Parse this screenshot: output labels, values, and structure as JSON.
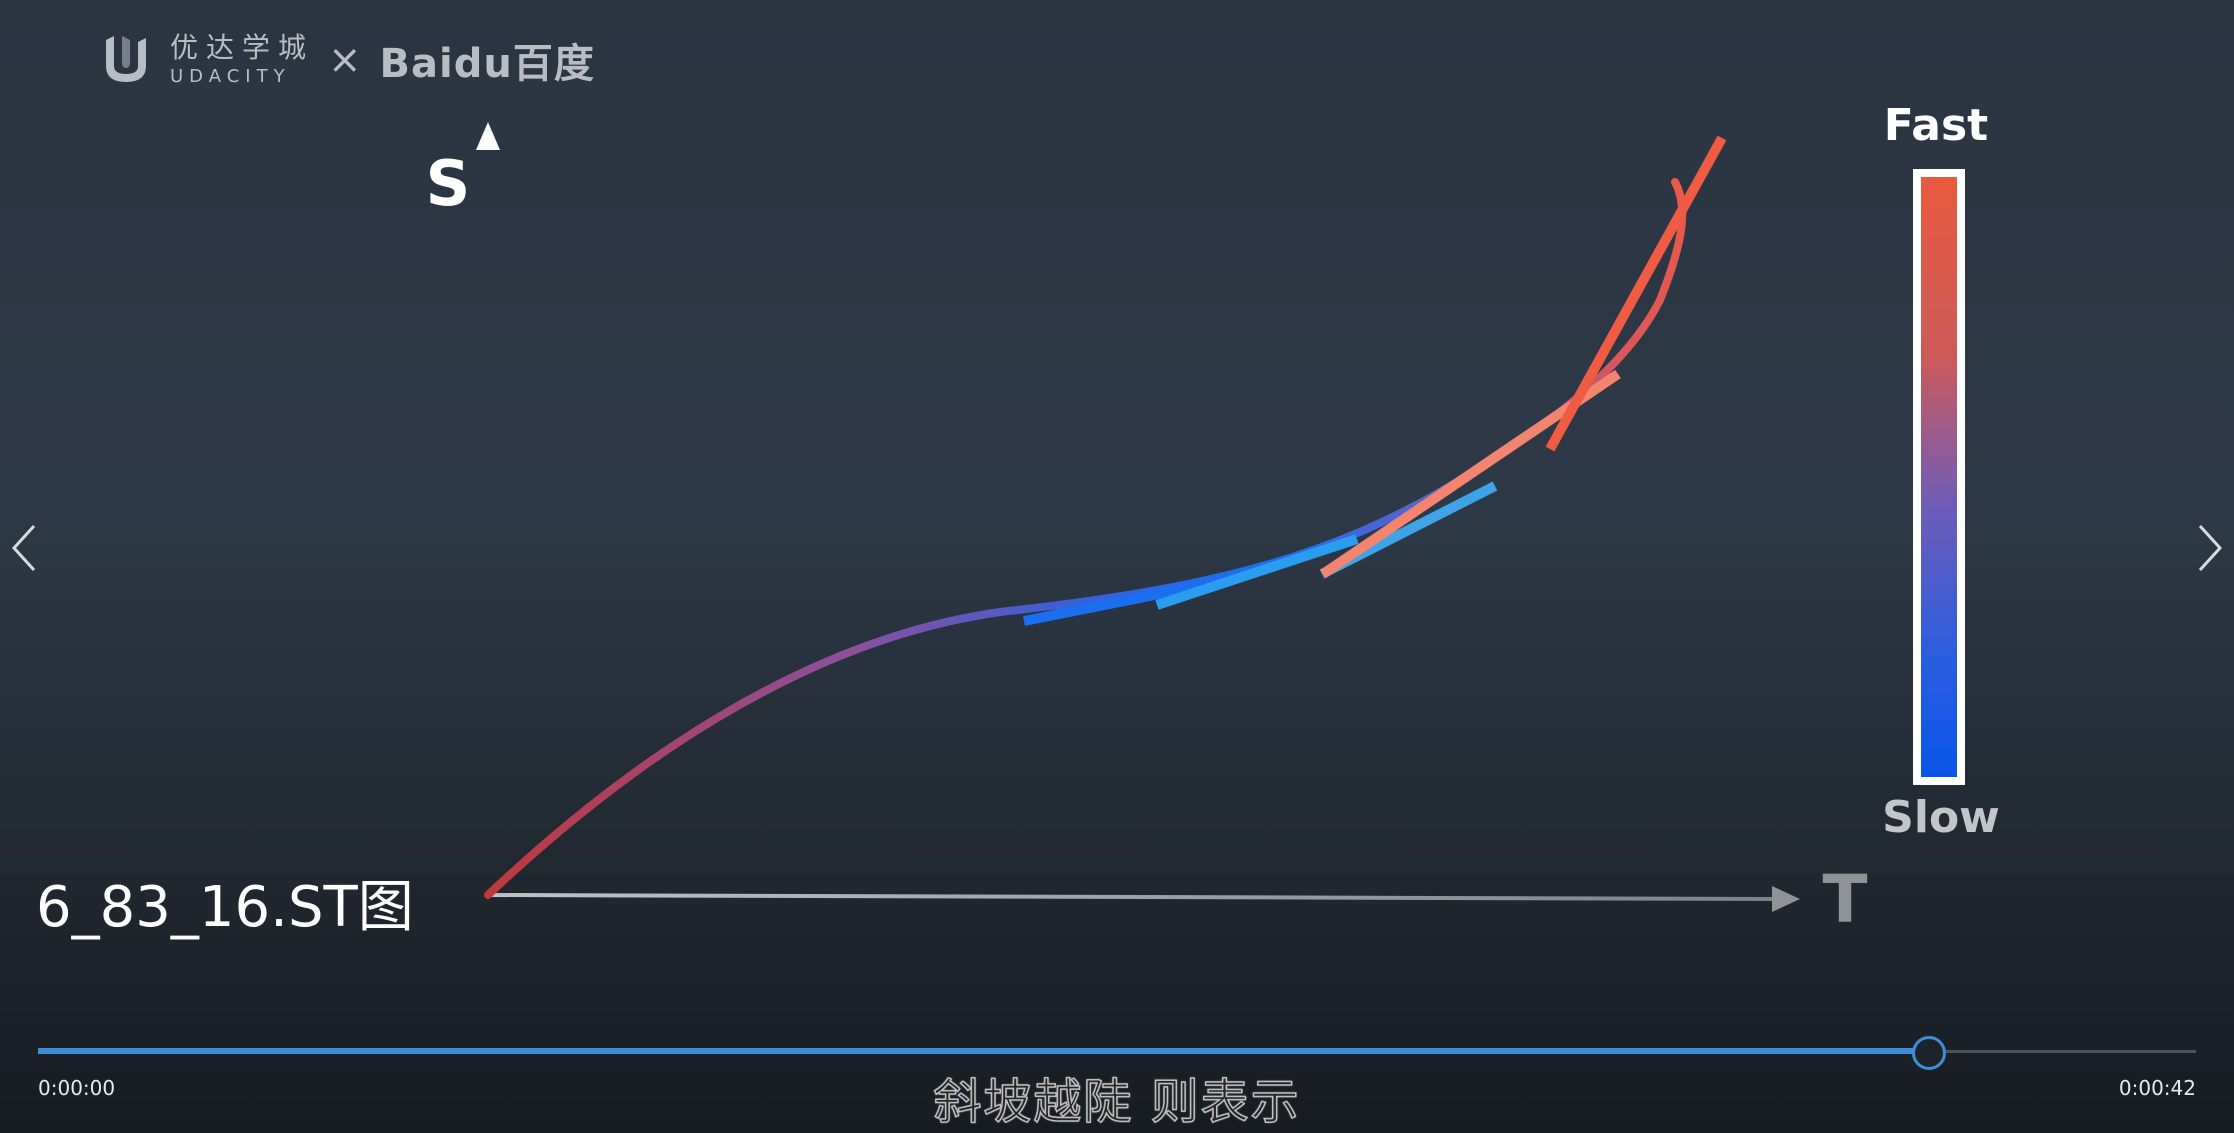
{
  "branding": {
    "udacity_cn": "优达学城",
    "udacity_en": "UDACITY",
    "separator": "×",
    "partner": "Baidu百度"
  },
  "video": {
    "title": "6_83_16.ST图",
    "subtitle": "斜坡越陡 则表示",
    "time_current": "0:00:00",
    "time_total": "0:00:42",
    "progress_fraction": 0.876
  },
  "navigation": {
    "prev_icon": "chevron-left-icon",
    "next_icon": "chevron-right-icon"
  },
  "chart_data": {
    "type": "line",
    "xlabel": "T",
    "ylabel": "S",
    "legend": {
      "top_label": "Fast",
      "bottom_label": "Slow",
      "top_color": "#e85a3e",
      "bottom_color": "#0a55e8"
    },
    "colors": {
      "slow": "#1a6ff0",
      "mid": "#7a58b8",
      "fast": "#ef5b43",
      "start": "#c0383c"
    }
  }
}
